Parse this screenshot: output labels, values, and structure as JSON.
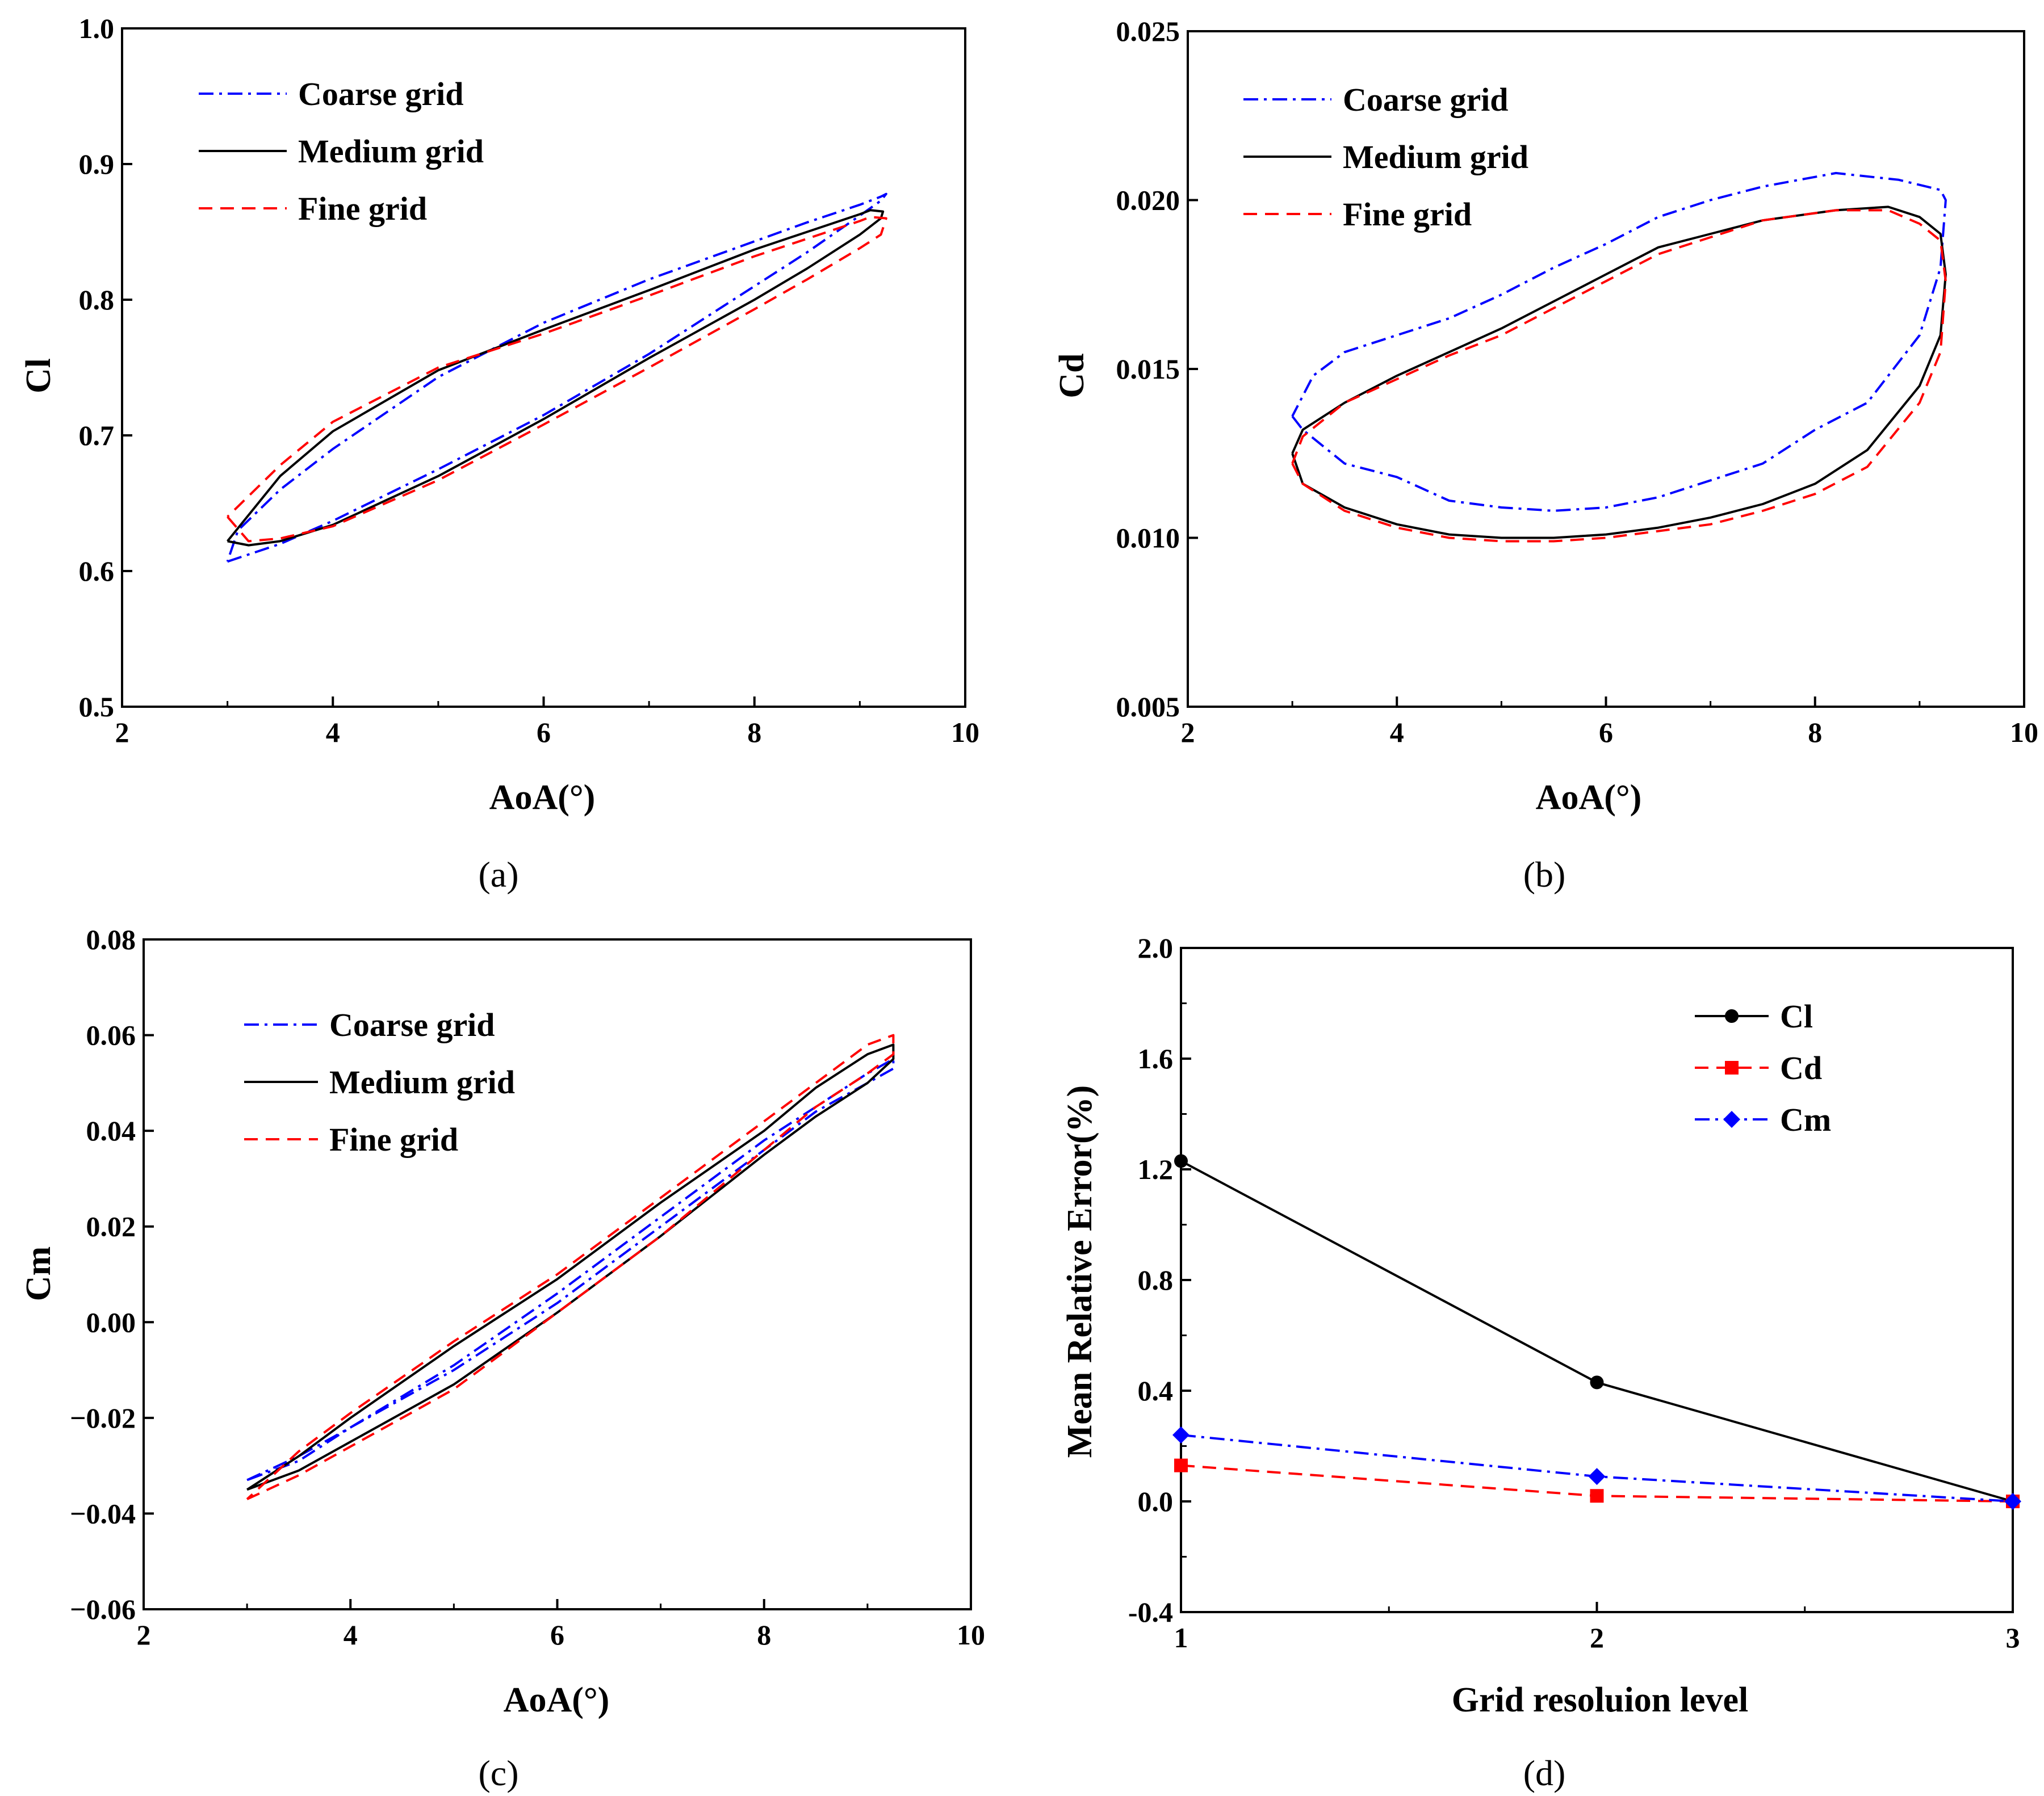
{
  "colors": {
    "coarse": "#0000ff",
    "medium": "#000000",
    "fine": "#ff0000"
  },
  "chart_data": [
    {
      "id": "a",
      "type": "line",
      "caption": "(a)",
      "xlabel": "AoA(°)",
      "ylabel": "Cl",
      "xlim": [
        2,
        10
      ],
      "ylim": [
        0.5,
        1.0
      ],
      "xticks": [
        2,
        4,
        6,
        8,
        10
      ],
      "yticks": [
        0.5,
        0.6,
        0.7,
        0.8,
        0.9,
        1.0
      ],
      "xtick_labels": [
        "2",
        "4",
        "6",
        "8",
        "10"
      ],
      "ytick_labels": [
        "0.5",
        "0.6",
        "0.7",
        "0.8",
        "0.9",
        "1.0"
      ],
      "legend": "top-left",
      "series": [
        {
          "name": "Coarse grid",
          "style": "dashdot",
          "color": "#0000ff",
          "x": [
            3.0,
            3.5,
            4.0,
            5.0,
            6.0,
            7.0,
            8.0,
            8.5,
            9.0,
            9.2,
            9.25,
            9.2,
            9.0,
            8.5,
            8.0,
            7.0,
            6.0,
            5.0,
            4.0,
            3.5,
            3.1,
            3.0
          ],
          "y": [
            0.607,
            0.62,
            0.637,
            0.675,
            0.715,
            0.76,
            0.81,
            0.835,
            0.862,
            0.873,
            0.878,
            0.876,
            0.87,
            0.857,
            0.843,
            0.815,
            0.783,
            0.743,
            0.69,
            0.66,
            0.63,
            0.607
          ]
        },
        {
          "name": "Medium grid",
          "style": "solid",
          "color": "#000000",
          "x": [
            3.0,
            3.2,
            3.5,
            4.0,
            5.0,
            6.0,
            7.0,
            8.0,
            8.5,
            9.0,
            9.2,
            9.22,
            9.1,
            9.0,
            8.5,
            8.0,
            7.0,
            6.0,
            5.0,
            4.0,
            3.5,
            3.0
          ],
          "y": [
            0.622,
            0.619,
            0.622,
            0.634,
            0.67,
            0.712,
            0.757,
            0.8,
            0.823,
            0.848,
            0.86,
            0.865,
            0.866,
            0.863,
            0.85,
            0.837,
            0.807,
            0.778,
            0.748,
            0.703,
            0.67,
            0.622
          ]
        },
        {
          "name": "Fine grid",
          "style": "dashed",
          "color": "#ff0000",
          "x": [
            3.0,
            3.2,
            3.5,
            4.0,
            5.0,
            6.0,
            7.0,
            8.0,
            8.5,
            9.0,
            9.2,
            9.25,
            9.1,
            9.0,
            8.5,
            8.0,
            7.0,
            6.0,
            5.0,
            4.0,
            3.5,
            3.0
          ],
          "y": [
            0.64,
            0.622,
            0.624,
            0.633,
            0.667,
            0.708,
            0.75,
            0.793,
            0.815,
            0.838,
            0.848,
            0.86,
            0.861,
            0.858,
            0.845,
            0.832,
            0.803,
            0.775,
            0.75,
            0.71,
            0.678,
            0.64
          ]
        }
      ]
    },
    {
      "id": "b",
      "type": "line",
      "caption": "(b)",
      "xlabel": "AoA(°)",
      "ylabel": "Cd",
      "xlim": [
        2,
        10
      ],
      "ylim": [
        0.005,
        0.025
      ],
      "xticks": [
        2,
        4,
        6,
        8,
        10
      ],
      "yticks": [
        0.005,
        0.01,
        0.015,
        0.02,
        0.025
      ],
      "xtick_labels": [
        "2",
        "4",
        "6",
        "8",
        "10"
      ],
      "ytick_labels": [
        "0.005",
        "0.010",
        "0.015",
        "0.020",
        "0.025"
      ],
      "legend": "top-left",
      "series": [
        {
          "name": "Coarse grid",
          "style": "dashdot",
          "color": "#0000ff",
          "x": [
            3.0,
            3.1,
            3.5,
            4.0,
            4.5,
            5.0,
            5.5,
            6.0,
            6.5,
            7.0,
            7.5,
            8.0,
            8.5,
            9.0,
            9.2,
            9.25,
            9.2,
            8.8,
            8.2,
            7.5,
            7.0,
            6.5,
            6.0,
            5.5,
            5.0,
            4.5,
            4.0,
            3.5,
            3.2,
            3.0
          ],
          "y": [
            0.0136,
            0.0132,
            0.0122,
            0.0118,
            0.0111,
            0.0109,
            0.0108,
            0.0109,
            0.0112,
            0.0117,
            0.0122,
            0.0132,
            0.014,
            0.016,
            0.018,
            0.02,
            0.0203,
            0.0206,
            0.0208,
            0.0204,
            0.02,
            0.0195,
            0.0187,
            0.018,
            0.0172,
            0.0165,
            0.016,
            0.0155,
            0.0148,
            0.0136
          ]
        },
        {
          "name": "Medium grid",
          "style": "solid",
          "color": "#000000",
          "x": [
            3.0,
            3.1,
            3.5,
            4.0,
            4.5,
            5.0,
            5.5,
            6.0,
            6.5,
            7.0,
            7.5,
            8.0,
            8.5,
            9.0,
            9.2,
            9.25,
            9.2,
            9.0,
            8.7,
            8.2,
            7.5,
            7.0,
            6.5,
            6.0,
            5.5,
            5.0,
            4.5,
            4.0,
            3.5,
            3.1,
            3.0
          ],
          "y": [
            0.0125,
            0.0116,
            0.0109,
            0.0104,
            0.0101,
            0.01,
            0.01,
            0.0101,
            0.0103,
            0.0106,
            0.011,
            0.0116,
            0.0126,
            0.0145,
            0.016,
            0.0178,
            0.019,
            0.0195,
            0.0198,
            0.0197,
            0.0194,
            0.019,
            0.0186,
            0.0178,
            0.017,
            0.0162,
            0.0155,
            0.0148,
            0.014,
            0.0132,
            0.0125
          ]
        },
        {
          "name": "Fine grid",
          "style": "dashed",
          "color": "#ff0000",
          "x": [
            3.0,
            3.1,
            3.5,
            4.0,
            4.5,
            5.0,
            5.5,
            6.0,
            6.5,
            7.0,
            7.5,
            8.0,
            8.5,
            9.0,
            9.2,
            9.25,
            9.2,
            9.0,
            8.7,
            8.2,
            7.5,
            7.0,
            6.5,
            6.0,
            5.5,
            5.0,
            4.5,
            4.0,
            3.5,
            3.1,
            3.0
          ],
          "y": [
            0.0122,
            0.0116,
            0.0108,
            0.0103,
            0.01,
            0.0099,
            0.0099,
            0.01,
            0.0102,
            0.0104,
            0.0108,
            0.0113,
            0.0121,
            0.014,
            0.0155,
            0.0176,
            0.0188,
            0.0193,
            0.0197,
            0.0197,
            0.0194,
            0.0189,
            0.0184,
            0.0176,
            0.0168,
            0.016,
            0.0154,
            0.0147,
            0.014,
            0.013,
            0.0122
          ]
        }
      ]
    },
    {
      "id": "c",
      "type": "line",
      "caption": "(c)",
      "xlabel": "AoA(°)",
      "ylabel": "Cm",
      "xlim": [
        2,
        10
      ],
      "ylim": [
        -0.06,
        0.08
      ],
      "xticks": [
        2,
        4,
        6,
        8,
        10
      ],
      "yticks": [
        -0.06,
        -0.04,
        -0.02,
        0.0,
        0.02,
        0.04,
        0.06,
        0.08
      ],
      "xtick_labels": [
        "2",
        "4",
        "6",
        "8",
        "10"
      ],
      "ytick_labels": [
        "−0.06",
        "−0.04",
        "−0.02",
        "0.00",
        "0.02",
        "0.04",
        "0.06",
        "0.08"
      ],
      "legend": "top-left",
      "series": [
        {
          "name": "Coarse grid",
          "style": "dashdot",
          "color": "#0000ff",
          "x": [
            3.0,
            3.5,
            4.0,
            5.0,
            6.0,
            7.0,
            8.0,
            8.5,
            9.0,
            9.25,
            9.25,
            9.0,
            8.5,
            8.0,
            7.0,
            6.0,
            5.0,
            4.0,
            3.5,
            3.0
          ],
          "y": [
            -0.033,
            -0.028,
            -0.022,
            -0.01,
            0.004,
            0.02,
            0.036,
            0.044,
            0.05,
            0.053,
            0.055,
            0.052,
            0.045,
            0.038,
            0.022,
            0.006,
            -0.009,
            -0.022,
            -0.029,
            -0.033
          ]
        },
        {
          "name": "Medium grid",
          "style": "solid",
          "color": "#000000",
          "x": [
            3.0,
            3.5,
            4.0,
            5.0,
            6.0,
            7.0,
            8.0,
            8.5,
            9.0,
            9.25,
            9.25,
            9.0,
            8.5,
            8.0,
            7.0,
            6.0,
            5.0,
            4.0,
            3.5,
            3.0
          ],
          "y": [
            -0.035,
            -0.031,
            -0.025,
            -0.013,
            0.002,
            0.018,
            0.035,
            0.043,
            0.05,
            0.055,
            0.058,
            0.056,
            0.049,
            0.04,
            0.025,
            0.009,
            -0.005,
            -0.02,
            -0.028,
            -0.035
          ]
        },
        {
          "name": "Fine grid",
          "style": "dashed",
          "color": "#ff0000",
          "x": [
            3.0,
            3.5,
            4.0,
            5.0,
            6.0,
            7.0,
            8.0,
            8.5,
            9.0,
            9.25,
            9.25,
            9.0,
            8.5,
            8.0,
            7.0,
            6.0,
            5.0,
            4.0,
            3.5,
            3.0
          ],
          "y": [
            -0.037,
            -0.032,
            -0.026,
            -0.014,
            0.002,
            0.018,
            0.036,
            0.045,
            0.052,
            0.056,
            0.06,
            0.058,
            0.05,
            0.042,
            0.026,
            0.01,
            -0.004,
            -0.019,
            -0.027,
            -0.037
          ]
        }
      ]
    },
    {
      "id": "d",
      "type": "line",
      "caption": "(d)",
      "xlabel": "Grid resoluion level",
      "ylabel": "Mean Relative Error(%)",
      "xlim": [
        1,
        3
      ],
      "ylim": [
        -0.4,
        2.0
      ],
      "xticks": [
        1,
        2,
        3
      ],
      "yticks": [
        -0.4,
        0.0,
        0.4,
        0.8,
        1.2,
        1.6,
        2.0
      ],
      "xtick_labels": [
        "1",
        "2",
        "3"
      ],
      "ytick_labels": [
        "-0.4",
        "0.0",
        "0.4",
        "0.8",
        "1.2",
        "1.6",
        "2.0"
      ],
      "legend": "top-right",
      "series": [
        {
          "name": "Cl",
          "style": "solid",
          "marker": "circle",
          "color": "#000000",
          "x": [
            1,
            2,
            3
          ],
          "y": [
            1.23,
            0.43,
            0.0
          ]
        },
        {
          "name": "Cd",
          "style": "dashed",
          "marker": "square",
          "color": "#ff0000",
          "x": [
            1,
            2,
            3
          ],
          "y": [
            0.13,
            0.02,
            0.0
          ]
        },
        {
          "name": "Cm",
          "style": "dashdot",
          "marker": "diamond",
          "color": "#0000ff",
          "x": [
            1,
            2,
            3
          ],
          "y": [
            0.24,
            0.09,
            0.0
          ]
        }
      ]
    }
  ]
}
